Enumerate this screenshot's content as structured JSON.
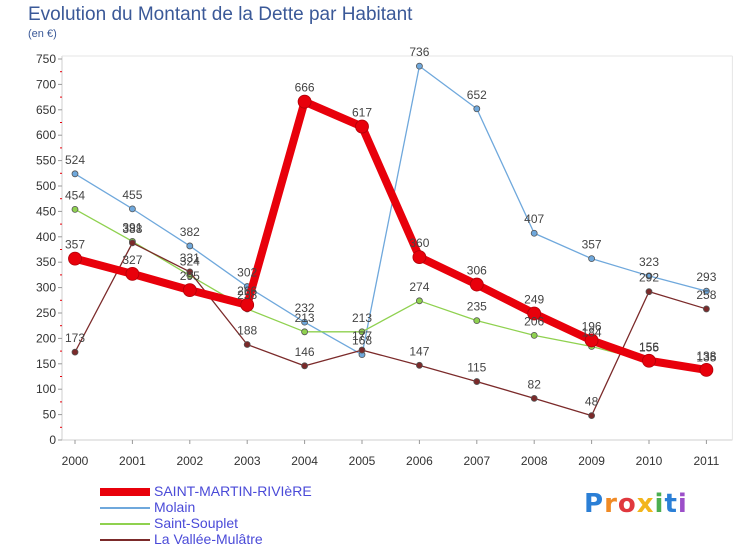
{
  "chart_data": {
    "type": "line",
    "title": "Evolution du Montant de la Dette par Habitant",
    "subtitle": "(en €)",
    "categories": [
      "2000",
      "2001",
      "2002",
      "2003",
      "2004",
      "2005",
      "2006",
      "2007",
      "2008",
      "2009",
      "2010",
      "2011"
    ],
    "ylim": [
      0,
      750
    ],
    "yticks": [
      0,
      50,
      100,
      150,
      200,
      250,
      300,
      350,
      400,
      450,
      500,
      550,
      600,
      650,
      700,
      750
    ],
    "grid": false,
    "legend_position": "bottom-left",
    "series": [
      {
        "name": "SAINT-MARTIN-RIVIèRE",
        "color": "#e8000b",
        "values": [
          357,
          327,
          295,
          266,
          666,
          617,
          360,
          306,
          249,
          196,
          156,
          138
        ]
      },
      {
        "name": "Molain",
        "color": "#6fa8dc",
        "values": [
          524,
          455,
          382,
          302,
          232,
          168,
          736,
          652,
          407,
          357,
          323,
          293
        ]
      },
      {
        "name": "Saint-Souplet",
        "color": "#8fd14f",
        "values": [
          454,
          391,
          324,
          258,
          213,
          213,
          274,
          235,
          206,
          184,
          155,
          135
        ]
      },
      {
        "name": "La Vallée-Mulâtre",
        "color": "#7b2a2a",
        "values": [
          173,
          388,
          331,
          188,
          146,
          177,
          147,
          115,
          82,
          48,
          292,
          258
        ]
      }
    ]
  },
  "logo": {
    "letters": [
      "P",
      "r",
      "o",
      "x",
      "i",
      "t",
      "i"
    ]
  }
}
